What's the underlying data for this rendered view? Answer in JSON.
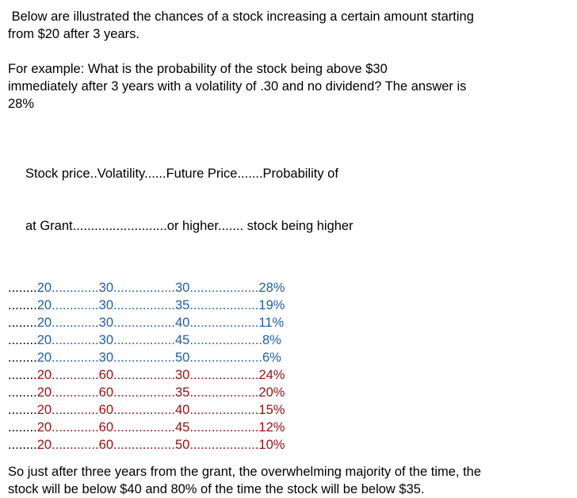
{
  "intro": {
    "line1": " Below are illustrated the chances of a stock increasing a certain amount starting",
    "line2": "from $20 after 3 years."
  },
  "example": {
    "line1": "For example: What is the probability of the stock being above $30",
    "line2": "immediately after 3 years with a volatility of .30 and no dividend? The answer is",
    "line3": "28%"
  },
  "header": {
    "line1": "Stock price..Volatility......Future Price.......Probability of",
    "line2": "at Grant..........................or higher....... stock being higher"
  },
  "colors": {
    "blue_rows": "#1f5fa8",
    "red_rows": "#9a0f0f"
  },
  "rows": [
    {
      "lead": "........",
      "price": "20",
      "sep1": ".............",
      "vol": "30",
      "sep2": ".................",
      "future": "30",
      "sep3": "...................",
      "prob": "28%",
      "color": "blue"
    },
    {
      "lead": "........",
      "price": "20",
      "sep1": ".............",
      "vol": "30",
      "sep2": ".................",
      "future": "35",
      "sep3": "...................",
      "prob": "19%",
      "color": "blue"
    },
    {
      "lead": "........",
      "price": "20",
      "sep1": ".............",
      "vol": "30",
      "sep2": ".................",
      "future": "40",
      "sep3": "...................",
      "prob": "11%",
      "color": "blue"
    },
    {
      "lead": "........",
      "price": "20",
      "sep1": ".............",
      "vol": "30",
      "sep2": ".................",
      "future": "45",
      "sep3": "....................",
      "prob": "8%",
      "color": "blue"
    },
    {
      "lead": "........",
      "price": "20",
      "sep1": ".............",
      "vol": "30",
      "sep2": ".................",
      "future": "50",
      "sep3": "....................",
      "prob": "6%",
      "color": "blue"
    },
    {
      "lead": "........",
      "price": "20",
      "sep1": ".............",
      "vol": "60",
      "sep2": ".................",
      "future": "30",
      "sep3": "...................",
      "prob": "24%",
      "color": "red"
    },
    {
      "lead": "........",
      "price": "20",
      "sep1": ".............",
      "vol": "60",
      "sep2": ".................",
      "future": "35",
      "sep3": "...................",
      "prob": "20%",
      "color": "red"
    },
    {
      "lead": "........",
      "price": "20",
      "sep1": ".............",
      "vol": "60",
      "sep2": ".................",
      "future": "40",
      "sep3": "...................",
      "prob": "15%",
      "color": "red"
    },
    {
      "lead": "........",
      "price": "20",
      "sep1": ".............",
      "vol": "60",
      "sep2": ".................",
      "future": "45",
      "sep3": "...................",
      "prob": "12%",
      "color": "red"
    },
    {
      "lead": "........",
      "price": "20",
      "sep1": ".............",
      "vol": "60",
      "sep2": ".................",
      "future": "50",
      "sep3": "...................",
      "prob": "10%",
      "color": "red"
    }
  ],
  "closing": {
    "line1": "So just after three years from the grant, the overwhelming majority of the time, the",
    "line2": "stock will be below $40 and 80% of the time the stock will be below $35."
  }
}
